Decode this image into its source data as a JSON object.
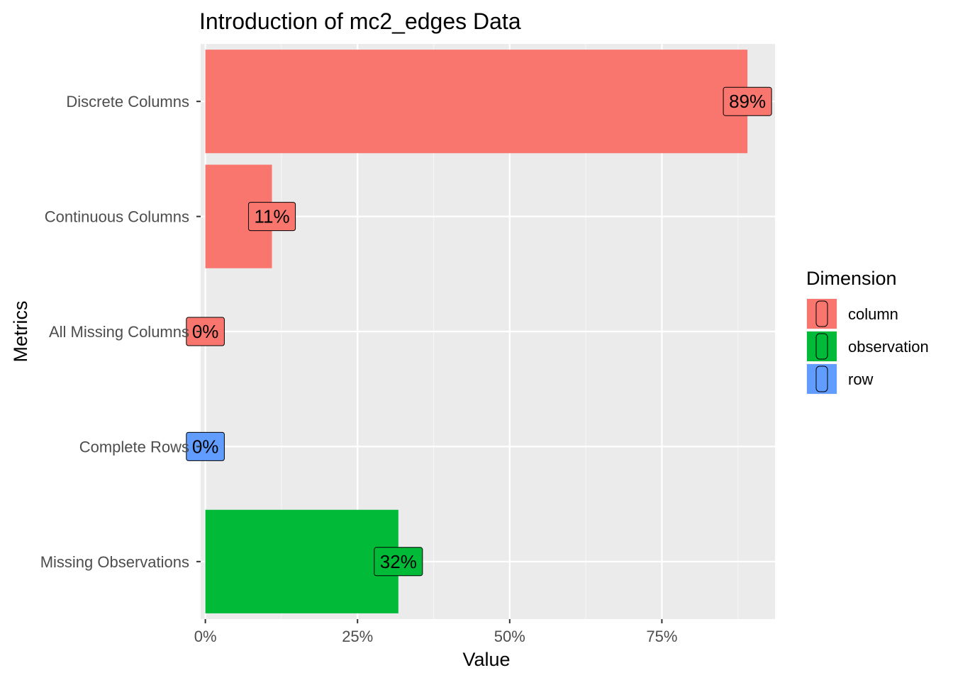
{
  "chart_data": {
    "type": "bar",
    "orientation": "horizontal",
    "title": "Introduction of mc2_edges Data",
    "xlabel": "Value",
    "ylabel": "Metrics",
    "xlim": [
      -0.0077,
      0.9359
    ],
    "x_ticks": [
      0,
      0.25,
      0.5,
      0.75
    ],
    "x_tick_labels": [
      "0%",
      "25%",
      "50%",
      "75%"
    ],
    "grid": true,
    "legend_position": "right",
    "legend_title": "Dimension",
    "categories": [
      "Discrete Columns",
      "Continuous Columns",
      "All Missing Columns",
      "Complete Rows",
      "Missing Observations"
    ],
    "values": [
      0.8906,
      0.1094,
      0.0,
      0.0,
      0.3171
    ],
    "labels": [
      "89%",
      "11%",
      "0%",
      "0%",
      "32%"
    ],
    "dimension": [
      "column",
      "column",
      "column",
      "row",
      "observation"
    ],
    "legend": [
      {
        "name": "column",
        "color": "#F8766D"
      },
      {
        "name": "observation",
        "color": "#00BA38"
      },
      {
        "name": "row",
        "color": "#619CFF"
      }
    ],
    "colors": {
      "panel_background": "#EBEBEB",
      "grid_major": "#FFFFFF",
      "grid_minor": "#F5F5F5",
      "tick_text": "#4D4D4D"
    }
  }
}
